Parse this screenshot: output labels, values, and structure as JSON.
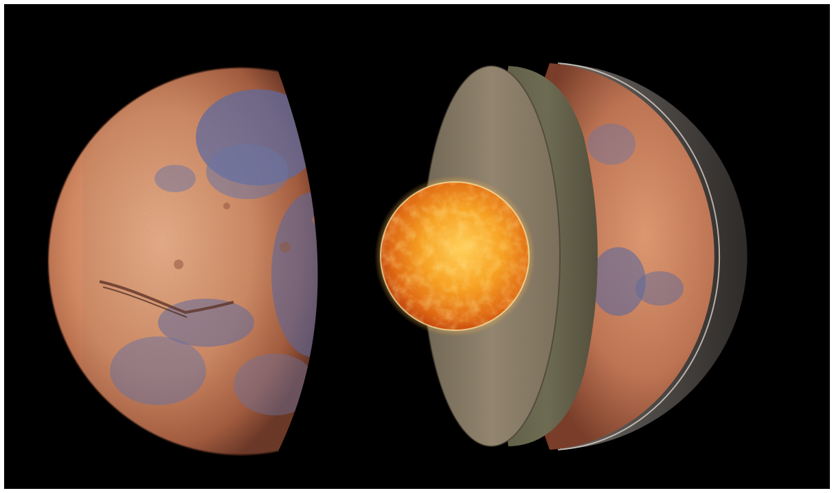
{
  "image": {
    "subject": "cutaway-planet-interior",
    "colors": {
      "background": "#000000",
      "border": "#ffffff",
      "surface_light": "#e8a27a",
      "surface_mid": "#c97a55",
      "surface_dark": "#7a3f2a",
      "surface_blue": "#5a6aa0",
      "mantle": "#8a7a60",
      "crust_band": "#6f6a52",
      "core_bright": "#ffd24a",
      "core_mid": "#f08a1a",
      "core_dark": "#c2420e",
      "shadow_shell": "#4a4643"
    }
  }
}
